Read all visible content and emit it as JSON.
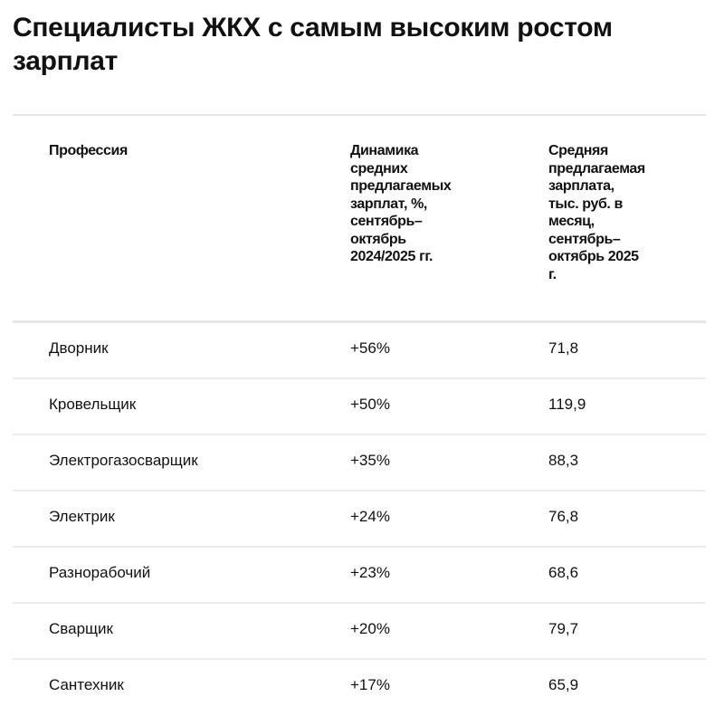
{
  "title": "Специалисты ЖКХ с самым высоким ростом зарплат",
  "table": {
    "headers": [
      "Профессия",
      "Динамика\nсредних\nпредлагаемых\nзарплат, %,\nсентябрь–\nоктябрь\n2024/2025 гг.",
      "Средняя\nпредлагаемая\nзарплата,\nтыс. руб. в\nмесяц,\nсентябрь–\nоктябрь 2025\nг."
    ],
    "rows": [
      [
        "Дворник",
        "+56%",
        "71,8"
      ],
      [
        "Кровельщик",
        "+50%",
        "119,9"
      ],
      [
        "Электрогазосварщик",
        "+35%",
        "88,3"
      ],
      [
        "Электрик",
        "+24%",
        "76,8"
      ],
      [
        "Разнорабочий",
        "+23%",
        "68,6"
      ],
      [
        "Сварщик",
        "+20%",
        "79,7"
      ],
      [
        "Сантехник",
        "+17%",
        "65,9"
      ]
    ]
  }
}
